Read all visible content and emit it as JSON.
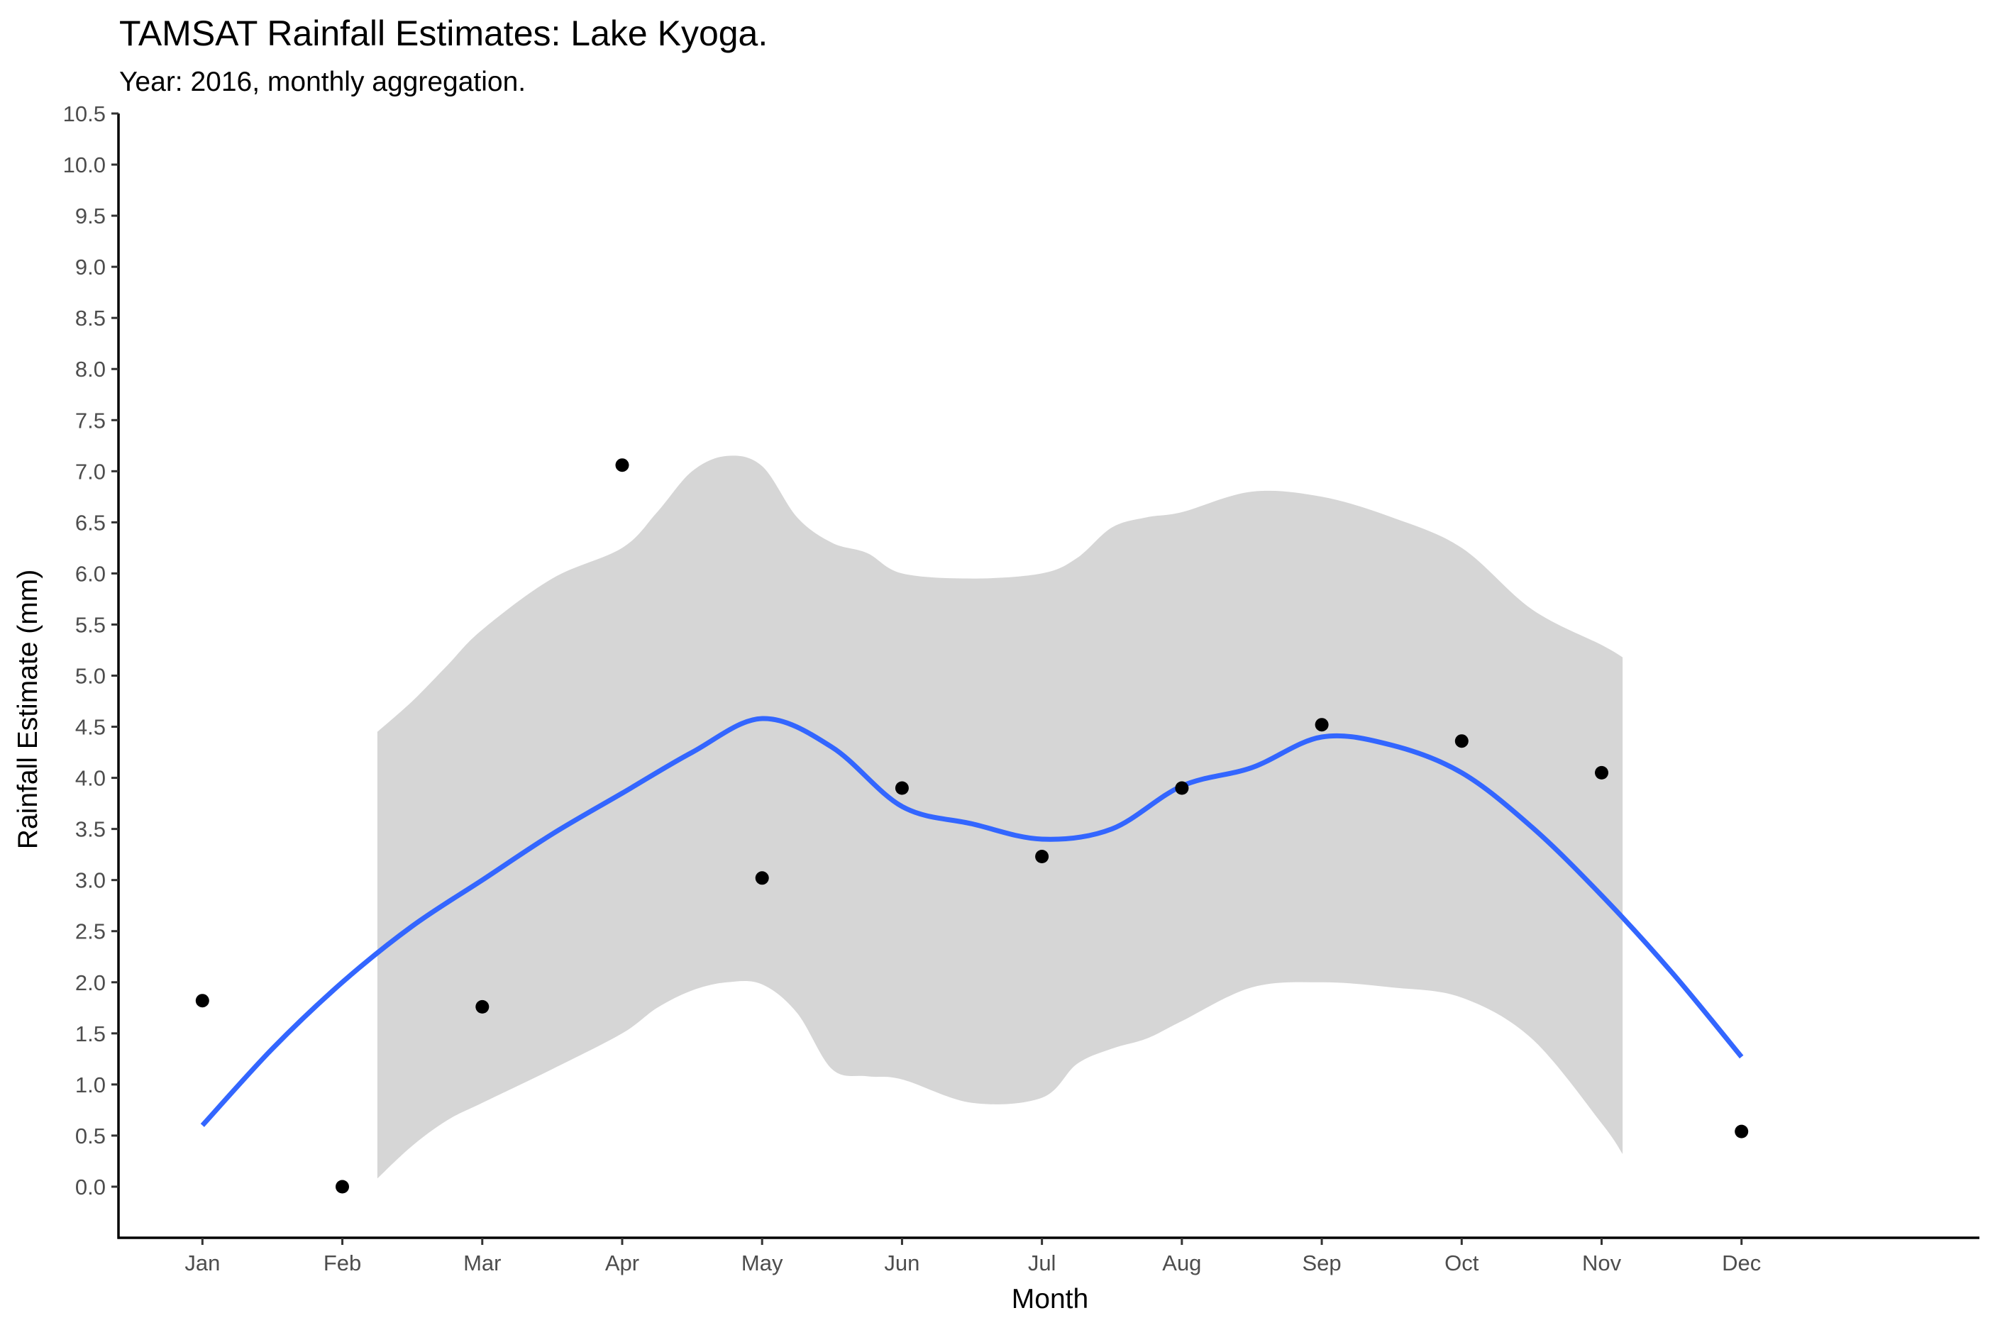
{
  "chart_data": {
    "type": "scatter",
    "title": "TAMSAT Rainfall Estimates: Lake Kyoga.",
    "subtitle": "Year: 2016, monthly aggregation.",
    "xlabel": "Month",
    "ylabel": "Rainfall Estimate (mm)",
    "categories": [
      "Jan",
      "Feb",
      "Mar",
      "Apr",
      "May",
      "Jun",
      "Jul",
      "Aug",
      "Sep",
      "Oct",
      "Nov",
      "Dec"
    ],
    "xlim": [
      0.4,
      13.7
    ],
    "ylim": [
      -0.5,
      10.5
    ],
    "yticks": [
      "0.0",
      "0.5",
      "1.0",
      "1.5",
      "2.0",
      "2.5",
      "3.0",
      "3.5",
      "4.0",
      "4.5",
      "5.0",
      "5.5",
      "6.0",
      "6.5",
      "7.0",
      "7.5",
      "8.0",
      "8.5",
      "9.0",
      "9.5",
      "10.0",
      "10.5"
    ],
    "grid": false,
    "colors": {
      "points": "#000000",
      "smooth_line": "#3366ff",
      "confidence_band": "#d6d6d6",
      "axis": "#000000"
    },
    "series": [
      {
        "values": [
          1.82,
          0.0,
          1.76,
          7.06,
          3.02,
          3.9,
          3.23,
          3.9,
          4.52,
          4.36,
          4.05,
          0.54
        ]
      }
    ],
    "smooth": {
      "x": [
        1,
        1.5,
        2,
        2.5,
        3,
        3.5,
        4,
        4.5,
        5,
        5.5,
        6,
        6.5,
        7,
        7.5,
        8,
        8.5,
        9,
        9.5,
        10,
        10.5,
        11,
        11.5,
        12
      ],
      "y": [
        0.6,
        1.35,
        2.0,
        2.55,
        3.0,
        3.45,
        3.85,
        4.25,
        4.58,
        4.3,
        3.72,
        3.55,
        3.4,
        3.5,
        3.92,
        4.1,
        4.4,
        4.32,
        4.05,
        3.52,
        2.85,
        2.1,
        1.27
      ]
    },
    "confidence_band": {
      "x": [
        2.25,
        2.5,
        2.75,
        3,
        3.5,
        4,
        4.25,
        4.5,
        4.75,
        5,
        5.25,
        5.5,
        5.75,
        6,
        6.5,
        7,
        7.25,
        7.5,
        7.75,
        8,
        8.5,
        9,
        9.5,
        10,
        10.5,
        11,
        11.15
      ],
      "upper": [
        4.45,
        4.75,
        5.1,
        5.45,
        5.95,
        6.25,
        6.6,
        7.0,
        7.15,
        7.05,
        6.55,
        6.3,
        6.2,
        6.0,
        5.95,
        6.0,
        6.15,
        6.45,
        6.55,
        6.6,
        6.8,
        6.75,
        6.55,
        6.25,
        5.65,
        5.3,
        5.18
      ],
      "lower": [
        0.08,
        0.4,
        0.65,
        0.82,
        1.15,
        1.5,
        1.75,
        1.92,
        2.0,
        1.98,
        1.7,
        1.15,
        1.08,
        1.05,
        0.82,
        0.87,
        1.2,
        1.35,
        1.45,
        1.62,
        1.95,
        2.0,
        1.95,
        1.85,
        1.45,
        0.62,
        0.32
      ]
    }
  }
}
